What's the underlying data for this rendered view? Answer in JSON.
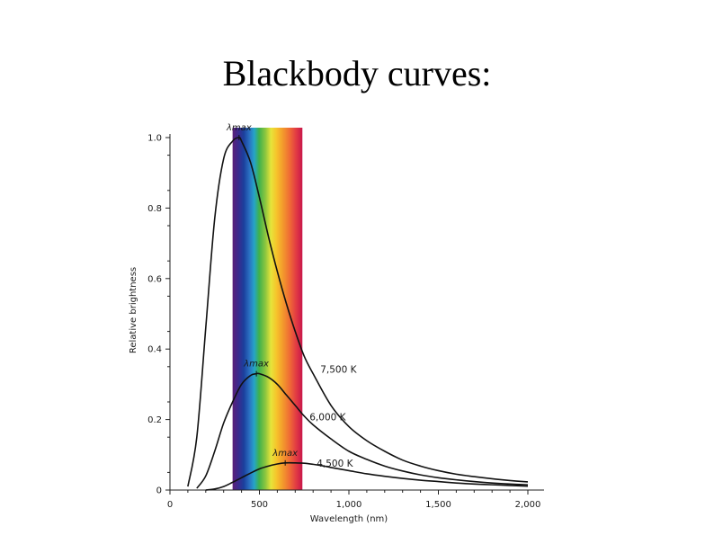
{
  "slide": {
    "title": "Blackbody curves:"
  },
  "chart_data": {
    "type": "line",
    "title": "",
    "xlabel": "Wavelength (nm)",
    "ylabel": "Relative brightness",
    "xlim": [
      0,
      2000
    ],
    "ylim": [
      0,
      1.0
    ],
    "x_ticks": [
      0,
      500,
      1000,
      1500,
      2000
    ],
    "x_tick_labels": [
      "0",
      "500",
      "1,000",
      "1,500",
      "2,000"
    ],
    "y_ticks": [
      0,
      0.2,
      0.4,
      0.6,
      0.8,
      1.0
    ],
    "y_tick_labels": [
      "0",
      "0.2",
      "0.4",
      "0.6",
      "0.8",
      "1.0"
    ],
    "grid": false,
    "visible_band_nm": [
      350,
      740
    ],
    "series": [
      {
        "name": "7,500 K",
        "peak_label": "λmax",
        "x": [
          100,
          150,
          200,
          250,
          300,
          350,
          386,
          400,
          450,
          500,
          550,
          600,
          650,
          700,
          750,
          800,
          900,
          1000,
          1100,
          1200,
          1300,
          1400,
          1500,
          1600,
          1700,
          1800,
          1900,
          2000
        ],
        "y": [
          0.01,
          0.15,
          0.46,
          0.77,
          0.94,
          0.99,
          1.0,
          0.99,
          0.93,
          0.83,
          0.72,
          0.62,
          0.53,
          0.45,
          0.38,
          0.33,
          0.24,
          0.18,
          0.14,
          0.11,
          0.085,
          0.068,
          0.055,
          0.045,
          0.038,
          0.032,
          0.027,
          0.023
        ]
      },
      {
        "name": "6,000 K",
        "peak_label": "λmax",
        "x": [
          150,
          200,
          250,
          300,
          350,
          400,
          450,
          483,
          500,
          550,
          600,
          650,
          700,
          750,
          800,
          900,
          1000,
          1100,
          1200,
          1300,
          1400,
          1500,
          1600,
          1700,
          1800,
          1900,
          2000
        ],
        "y": [
          0.005,
          0.04,
          0.11,
          0.19,
          0.25,
          0.3,
          0.325,
          0.33,
          0.33,
          0.32,
          0.3,
          0.27,
          0.24,
          0.21,
          0.185,
          0.145,
          0.11,
          0.087,
          0.068,
          0.054,
          0.043,
          0.035,
          0.029,
          0.024,
          0.02,
          0.017,
          0.015
        ]
      },
      {
        "name": "4,500 K",
        "peak_label": "λmax",
        "x": [
          200,
          250,
          300,
          350,
          400,
          450,
          500,
          550,
          600,
          644,
          700,
          750,
          800,
          850,
          900,
          1000,
          1100,
          1200,
          1300,
          1400,
          1500,
          1600,
          1700,
          1800,
          1900,
          2000
        ],
        "y": [
          0.0,
          0.003,
          0.01,
          0.022,
          0.035,
          0.048,
          0.06,
          0.068,
          0.074,
          0.077,
          0.077,
          0.076,
          0.073,
          0.069,
          0.064,
          0.055,
          0.046,
          0.039,
          0.033,
          0.028,
          0.024,
          0.02,
          0.017,
          0.015,
          0.013,
          0.011
        ]
      }
    ]
  }
}
